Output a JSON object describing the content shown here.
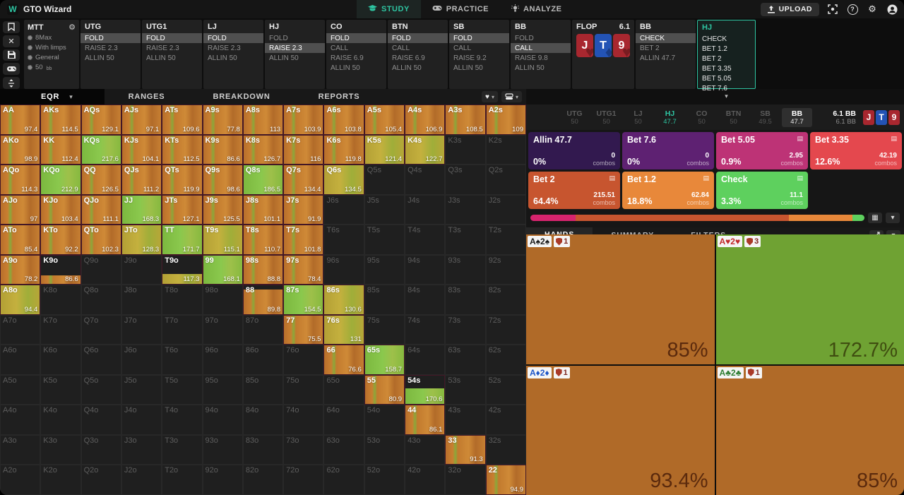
{
  "topbar": {
    "brand": "GTO Wizard",
    "tabs": [
      {
        "label": "STUDY",
        "icon": "graduation-cap",
        "active": true
      },
      {
        "label": "PRACTICE",
        "icon": "gamepad",
        "active": false
      },
      {
        "label": "ANALYZE",
        "icon": "lightbulb",
        "active": false
      }
    ],
    "upload_label": "UPLOAD"
  },
  "settings": {
    "title": "MTT",
    "items": [
      {
        "label": "8Max"
      },
      {
        "label": "With limps"
      },
      {
        "label": "General"
      },
      {
        "label": "50",
        "suffix": "bb"
      }
    ]
  },
  "history": {
    "columns": [
      {
        "title": "UTG",
        "type": "normal",
        "actions": [
          {
            "label": "FOLD",
            "sel": true
          },
          {
            "label": "RAISE 2.3"
          },
          {
            "label": "ALLIN 50"
          }
        ]
      },
      {
        "title": "UTG1",
        "type": "normal",
        "actions": [
          {
            "label": "FOLD",
            "sel": true
          },
          {
            "label": "RAISE 2.3"
          },
          {
            "label": "ALLIN 50"
          }
        ]
      },
      {
        "title": "LJ",
        "type": "normal",
        "actions": [
          {
            "label": "FOLD",
            "sel": true
          },
          {
            "label": "RAISE 2.3"
          },
          {
            "label": "ALLIN 50"
          }
        ]
      },
      {
        "title": "HJ",
        "type": "normal",
        "actions": [
          {
            "label": "FOLD"
          },
          {
            "label": "RAISE 2.3",
            "sel": true
          },
          {
            "label": "ALLIN 50"
          }
        ]
      },
      {
        "title": "CO",
        "type": "normal",
        "actions": [
          {
            "label": "FOLD",
            "sel": true
          },
          {
            "label": "CALL"
          },
          {
            "label": "RAISE 6.9"
          },
          {
            "label": "ALLIN 50"
          }
        ]
      },
      {
        "title": "BTN",
        "type": "normal",
        "actions": [
          {
            "label": "FOLD",
            "sel": true
          },
          {
            "label": "CALL"
          },
          {
            "label": "RAISE 6.9"
          },
          {
            "label": "ALLIN 50"
          }
        ]
      },
      {
        "title": "SB",
        "type": "normal",
        "actions": [
          {
            "label": "FOLD",
            "sel": true
          },
          {
            "label": "CALL"
          },
          {
            "label": "RAISE 9.2"
          },
          {
            "label": "ALLIN 50"
          }
        ]
      },
      {
        "title": "BB",
        "type": "normal",
        "actions": [
          {
            "label": "FOLD"
          },
          {
            "label": "CALL",
            "sel": true
          },
          {
            "label": "RAISE 9.8"
          },
          {
            "label": "ALLIN 50"
          }
        ]
      },
      {
        "title": "FLOP",
        "type": "flop",
        "ev": "6.1"
      },
      {
        "title": "BB",
        "type": "normal",
        "actions": [
          {
            "label": "CHECK",
            "sel": true
          },
          {
            "label": "BET 2"
          },
          {
            "label": "ALLIN 47.7"
          }
        ]
      },
      {
        "title": "HJ",
        "type": "active",
        "actions": [
          {
            "label": "CHECK"
          },
          {
            "label": "BET 1.2"
          },
          {
            "label": "BET 2"
          },
          {
            "label": "BET 3.35"
          },
          {
            "label": "BET 5.05"
          },
          {
            "label": "BET 7.6"
          }
        ]
      }
    ]
  },
  "board_cards": [
    {
      "rank": "J",
      "suit": "♥",
      "color": "red"
    },
    {
      "rank": "T",
      "suit": "♦",
      "color": "blue"
    },
    {
      "rank": "9",
      "suit": "♥",
      "color": "red"
    }
  ],
  "view_tabs": [
    {
      "label": "EQR",
      "active": true,
      "has_caret": true
    },
    {
      "label": "RANGES"
    },
    {
      "label": "BREAKDOWN"
    },
    {
      "label": "REPORTS"
    }
  ],
  "matrix_rows": [
    [
      [
        "AA",
        "97.4"
      ],
      [
        "AKs",
        "114.5"
      ],
      [
        "AQs",
        "129.1"
      ],
      [
        "AJs",
        "97.1"
      ],
      [
        "ATs",
        "109.6"
      ],
      [
        "A9s",
        "77.8"
      ],
      [
        "A8s",
        "113"
      ],
      [
        "A7s",
        "103.9"
      ],
      [
        "A6s",
        "103.8"
      ],
      [
        "A5s",
        "105.4"
      ],
      [
        "A4s",
        "106.9"
      ],
      [
        "A3s",
        "108.5"
      ],
      [
        "A2s",
        "109"
      ]
    ],
    [
      [
        "AKo",
        "98.9"
      ],
      [
        "KK",
        "112.4"
      ],
      [
        "KQs",
        "217.6",
        "g"
      ],
      [
        "KJs",
        "104.1"
      ],
      [
        "KTs",
        "112.5"
      ],
      [
        "K9s",
        "86.6"
      ],
      [
        "K8s",
        "126.7"
      ],
      [
        "K7s",
        "116"
      ],
      [
        "K6s",
        "119.8"
      ],
      [
        "K5s",
        "121.4",
        "y"
      ],
      [
        "K4s",
        "122.7",
        "y"
      ],
      [
        "K3s",
        ""
      ],
      [
        "K2s",
        ""
      ]
    ],
    [
      [
        "AQo",
        "114.3"
      ],
      [
        "KQo",
        "212.9",
        "g"
      ],
      [
        "QQ",
        "126.5"
      ],
      [
        "QJs",
        "111.2"
      ],
      [
        "QTs",
        "119.9"
      ],
      [
        "Q9s",
        "98.6"
      ],
      [
        "Q8s",
        "186.5",
        "g"
      ],
      [
        "Q7s",
        "134.4"
      ],
      [
        "Q6s",
        "134.5",
        "y"
      ],
      [
        "Q5s",
        ""
      ],
      [
        "Q4s",
        ""
      ],
      [
        "Q3s",
        ""
      ],
      [
        "Q2s",
        ""
      ]
    ],
    [
      [
        "AJo",
        "97"
      ],
      [
        "KJo",
        "103.4"
      ],
      [
        "QJo",
        "111.1"
      ],
      [
        "JJ",
        "168.3",
        "g"
      ],
      [
        "JTs",
        "127.1"
      ],
      [
        "J9s",
        "125.5"
      ],
      [
        "J8s",
        "101.1"
      ],
      [
        "J7s",
        "91.9"
      ],
      [
        "J6s",
        ""
      ],
      [
        "J5s",
        ""
      ],
      [
        "J4s",
        ""
      ],
      [
        "J3s",
        ""
      ],
      [
        "J2s",
        ""
      ]
    ],
    [
      [
        "ATo",
        "85.4"
      ],
      [
        "KTo",
        "92.2"
      ],
      [
        "QTo",
        "102.3"
      ],
      [
        "JTo",
        "128.3",
        "y"
      ],
      [
        "TT",
        "171.7",
        "g"
      ],
      [
        "T9s",
        "115.1",
        "y"
      ],
      [
        "T8s",
        "110.7"
      ],
      [
        "T7s",
        "101.8"
      ],
      [
        "T6s",
        ""
      ],
      [
        "T5s",
        ""
      ],
      [
        "T4s",
        ""
      ],
      [
        "T3s",
        ""
      ],
      [
        "T2s",
        ""
      ]
    ],
    [
      [
        "A9o",
        "78.2"
      ],
      [
        "K9o",
        "86.6",
        "o",
        0.3
      ],
      [
        "Q9o",
        ""
      ],
      [
        "J9o",
        ""
      ],
      [
        "T9o",
        "117.3",
        "y",
        0.35
      ],
      [
        "99",
        "168.1",
        "g"
      ],
      [
        "98s",
        "88.8"
      ],
      [
        "97s",
        "78.4"
      ],
      [
        "96s",
        ""
      ],
      [
        "95s",
        ""
      ],
      [
        "94s",
        ""
      ],
      [
        "93s",
        ""
      ],
      [
        "92s",
        ""
      ]
    ],
    [
      [
        "A8o",
        "94.4",
        "y"
      ],
      [
        "K8o",
        ""
      ],
      [
        "Q8o",
        ""
      ],
      [
        "J8o",
        ""
      ],
      [
        "T8o",
        ""
      ],
      [
        "98o",
        ""
      ],
      [
        "88",
        "89.8",
        "o",
        0.85
      ],
      [
        "87s",
        "154.5",
        "g"
      ],
      [
        "86s",
        "130.6",
        "y"
      ],
      [
        "85s",
        ""
      ],
      [
        "84s",
        ""
      ],
      [
        "83s",
        ""
      ],
      [
        "82s",
        ""
      ]
    ],
    [
      [
        "A7o",
        ""
      ],
      [
        "K7o",
        ""
      ],
      [
        "Q7o",
        ""
      ],
      [
        "J7o",
        ""
      ],
      [
        "T7o",
        ""
      ],
      [
        "97o",
        ""
      ],
      [
        "87o",
        ""
      ],
      [
        "77",
        "75.5"
      ],
      [
        "76s",
        "131",
        "y"
      ],
      [
        "75s",
        ""
      ],
      [
        "74s",
        ""
      ],
      [
        "73s",
        ""
      ],
      [
        "72s",
        ""
      ]
    ],
    [
      [
        "A6o",
        ""
      ],
      [
        "K6o",
        ""
      ],
      [
        "Q6o",
        ""
      ],
      [
        "J6o",
        ""
      ],
      [
        "T6o",
        ""
      ],
      [
        "96o",
        ""
      ],
      [
        "86o",
        ""
      ],
      [
        "76o",
        ""
      ],
      [
        "66",
        "76.6"
      ],
      [
        "65s",
        "158.7",
        "g"
      ],
      [
        "64s",
        ""
      ],
      [
        "63s",
        ""
      ],
      [
        "62s",
        ""
      ]
    ],
    [
      [
        "A5o",
        ""
      ],
      [
        "K5o",
        ""
      ],
      [
        "Q5o",
        ""
      ],
      [
        "J5o",
        ""
      ],
      [
        "T5o",
        ""
      ],
      [
        "95o",
        ""
      ],
      [
        "85o",
        ""
      ],
      [
        "75o",
        ""
      ],
      [
        "65o",
        ""
      ],
      [
        "55",
        "80.9"
      ],
      [
        "54s",
        "170.6",
        "g",
        0.55
      ],
      [
        "53s",
        ""
      ],
      [
        "52s",
        ""
      ]
    ],
    [
      [
        "A4o",
        ""
      ],
      [
        "K4o",
        ""
      ],
      [
        "Q4o",
        ""
      ],
      [
        "J4o",
        ""
      ],
      [
        "T4o",
        ""
      ],
      [
        "94o",
        ""
      ],
      [
        "84o",
        ""
      ],
      [
        "74o",
        ""
      ],
      [
        "64o",
        ""
      ],
      [
        "54o",
        ""
      ],
      [
        "44",
        "86.1"
      ],
      [
        "43s",
        ""
      ],
      [
        "42s",
        ""
      ]
    ],
    [
      [
        "A3o",
        ""
      ],
      [
        "K3o",
        ""
      ],
      [
        "Q3o",
        ""
      ],
      [
        "J3o",
        ""
      ],
      [
        "T3o",
        ""
      ],
      [
        "93o",
        ""
      ],
      [
        "83o",
        ""
      ],
      [
        "73o",
        ""
      ],
      [
        "63o",
        ""
      ],
      [
        "53o",
        ""
      ],
      [
        "43o",
        ""
      ],
      [
        "33",
        "91.3"
      ],
      [
        "32s",
        ""
      ]
    ],
    [
      [
        "A2o",
        ""
      ],
      [
        "K2o",
        ""
      ],
      [
        "Q2o",
        ""
      ],
      [
        "J2o",
        ""
      ],
      [
        "T2o",
        ""
      ],
      [
        "92o",
        ""
      ],
      [
        "82o",
        ""
      ],
      [
        "72o",
        ""
      ],
      [
        "62o",
        ""
      ],
      [
        "52o",
        ""
      ],
      [
        "42o",
        ""
      ],
      [
        "32o",
        ""
      ],
      [
        "22",
        "94.9"
      ]
    ]
  ],
  "positions": [
    {
      "pos": "UTG",
      "stack": "50"
    },
    {
      "pos": "UTG1",
      "stack": "50"
    },
    {
      "pos": "LJ",
      "stack": "50"
    },
    {
      "pos": "HJ",
      "stack": "47.7",
      "state": "active"
    },
    {
      "pos": "CO",
      "stack": "50"
    },
    {
      "pos": "BTN",
      "stack": "50"
    },
    {
      "pos": "SB",
      "stack": "49.5"
    },
    {
      "pos": "BB",
      "stack": "47.7",
      "state": "hero"
    }
  ],
  "pot": {
    "line1": "6.1 BB",
    "line2": "6.1 BB"
  },
  "combos_word": "combos",
  "actions": [
    {
      "label": "Allin 47.7",
      "pct": "0%",
      "combos": "0",
      "color": "#32194f",
      "icon": false
    },
    {
      "label": "Bet 7.6",
      "pct": "0%",
      "combos": "0",
      "color": "#5e2172",
      "icon": false
    },
    {
      "label": "Bet 5.05",
      "pct": "0.9%",
      "combos": "2.95",
      "color": "#bd3376",
      "icon": true
    },
    {
      "label": "Bet 3.35",
      "pct": "12.6%",
      "combos": "42.19",
      "color": "#e4484e",
      "icon": true
    },
    {
      "label": "Bet 2",
      "pct": "64.4%",
      "combos": "215.51",
      "color": "#c7552f",
      "icon": true
    },
    {
      "label": "Bet 1.2",
      "pct": "18.8%",
      "combos": "62.84",
      "color": "#e8883a",
      "icon": true
    },
    {
      "label": "Check",
      "pct": "3.3%",
      "combos": "11.1",
      "color": "#5ed05e",
      "icon": true
    }
  ],
  "strategy_bar": [
    {
      "color": "#d6246e",
      "width": 13.5
    },
    {
      "color": "#c7552f",
      "width": 63.9
    },
    {
      "color": "#e8883a",
      "width": 19.1
    },
    {
      "color": "#5ed05e",
      "width": 3.5
    }
  ],
  "hand_tabs": [
    {
      "label": "HANDS",
      "active": true
    },
    {
      "label": "SUMMARY"
    },
    {
      "label": "FILTERS"
    }
  ],
  "hand_panels": [
    {
      "combo": [
        {
          "r": "A",
          "s": "♠"
        },
        {
          "r": "2",
          "s": "♠"
        }
      ],
      "suit_color": "#1b1b1b",
      "badge": "1",
      "bg": "#b06a28",
      "value": "85%",
      "fg": "#5b2a0d"
    },
    {
      "combo": [
        {
          "r": "A",
          "s": "♥"
        },
        {
          "r": "2",
          "s": "♥"
        }
      ],
      "suit_color": "#c22a2a",
      "badge": "3",
      "bg": "#6fa233",
      "value": "172.7%",
      "fg": "#3f4d10"
    },
    {
      "combo": [
        {
          "r": "A",
          "s": "♦"
        },
        {
          "r": "2",
          "s": "♦"
        }
      ],
      "suit_color": "#1e56c8",
      "badge": "1",
      "bg": "#b06a28",
      "value": "93.4%",
      "fg": "#5b2a0d"
    },
    {
      "combo": [
        {
          "r": "A",
          "s": "♣"
        },
        {
          "r": "2",
          "s": "♣"
        }
      ],
      "suit_color": "#2e7d32",
      "badge": "1",
      "bg": "#b06a28",
      "value": "85%",
      "fg": "#5b2a0d"
    }
  ],
  "glyphs": {
    "caret": "▾",
    "close": "✕",
    "gear": "⚙",
    "heart": "♥",
    "grid": "▦",
    "note": "▤",
    "question": "?",
    "chevron": "▾"
  }
}
